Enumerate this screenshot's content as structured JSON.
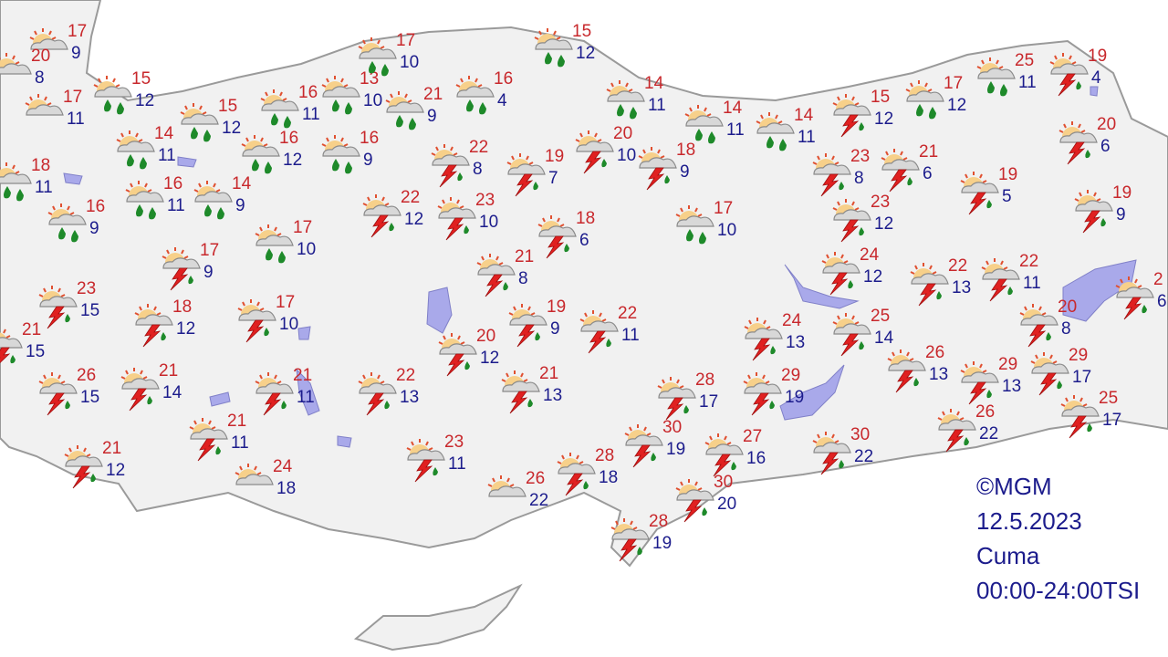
{
  "legend": {
    "copyright": "©MGM",
    "date": "12.5.2023",
    "day": "Cuma",
    "time_range": "00:00-24:00TSI"
  },
  "colors": {
    "high_temp": "#c8282c",
    "low_temp": "#1c1c8c",
    "land": "#f1f1f1",
    "water": "#a9a9ea",
    "border": "#9a9a9a"
  },
  "stations": [
    {
      "high": "17",
      "low": "9",
      "icon": "cloudy"
    },
    {
      "high": "20",
      "low": "8",
      "icon": "cloudy"
    },
    {
      "high": "17",
      "low": "11",
      "icon": "cloudy"
    },
    {
      "high": "15",
      "low": "12",
      "icon": "rain"
    },
    {
      "high": "15",
      "low": "12",
      "icon": "rain"
    },
    {
      "high": "14",
      "low": "11",
      "icon": "rain"
    },
    {
      "high": "18",
      "low": "11",
      "icon": "rain"
    },
    {
      "high": "16",
      "low": "11",
      "icon": "rain"
    },
    {
      "high": "14",
      "low": "9",
      "icon": "rain"
    },
    {
      "high": "16",
      "low": "9",
      "icon": "rain"
    },
    {
      "high": "16",
      "low": "12",
      "icon": "rain"
    },
    {
      "high": "16",
      "low": "11",
      "icon": "rain"
    },
    {
      "high": "13",
      "low": "10",
      "icon": "rain"
    },
    {
      "high": "17",
      "low": "10",
      "icon": "rain"
    },
    {
      "high": "21",
      "low": "9",
      "icon": "rain"
    },
    {
      "high": "16",
      "low": "9",
      "icon": "rain"
    },
    {
      "high": "16",
      "low": "4",
      "icon": "rain"
    },
    {
      "high": "15",
      "low": "12",
      "icon": "rain"
    },
    {
      "high": "14",
      "low": "11",
      "icon": "rain"
    },
    {
      "high": "14",
      "low": "11",
      "icon": "rain"
    },
    {
      "high": "14",
      "low": "11",
      "icon": "rain"
    },
    {
      "high": "15",
      "low": "12",
      "icon": "thunderstorm"
    },
    {
      "high": "17",
      "low": "12",
      "icon": "rain"
    },
    {
      "high": "25",
      "low": "11",
      "icon": "rain"
    },
    {
      "high": "19",
      "low": "4",
      "icon": "thunderstorm"
    },
    {
      "high": "20",
      "low": "6",
      "icon": "thunderstorm"
    },
    {
      "high": "19",
      "low": "5",
      "icon": "thunderstorm"
    },
    {
      "high": "19",
      "low": "9",
      "icon": "thunderstorm"
    },
    {
      "high": "21",
      "low": "6",
      "icon": "thunderstorm"
    },
    {
      "high": "23",
      "low": "8",
      "icon": "thunderstorm"
    },
    {
      "high": "23",
      "low": "12",
      "icon": "thunderstorm"
    },
    {
      "high": "22",
      "low": "8",
      "icon": "thunderstorm"
    },
    {
      "high": "19",
      "low": "7",
      "icon": "thunderstorm"
    },
    {
      "high": "20",
      "low": "10",
      "icon": "thunderstorm"
    },
    {
      "high": "18",
      "low": "9",
      "icon": "thunderstorm"
    },
    {
      "high": "22",
      "low": "12",
      "icon": "thunderstorm"
    },
    {
      "high": "23",
      "low": "10",
      "icon": "thunderstorm"
    },
    {
      "high": "18",
      "low": "6",
      "icon": "thunderstorm"
    },
    {
      "high": "17",
      "low": "10",
      "icon": "rain"
    },
    {
      "high": "17",
      "low": "10",
      "icon": "rain"
    },
    {
      "high": "17",
      "low": "9",
      "icon": "thunderstorm"
    },
    {
      "high": "21",
      "low": "8",
      "icon": "thunderstorm"
    },
    {
      "high": "23",
      "low": "15",
      "icon": "thunderstorm"
    },
    {
      "high": "21",
      "low": "15",
      "icon": "thunderstorm"
    },
    {
      "high": "18",
      "low": "12",
      "icon": "thunderstorm"
    },
    {
      "high": "17",
      "low": "10",
      "icon": "thunderstorm"
    },
    {
      "high": "19",
      "low": "9",
      "icon": "thunderstorm"
    },
    {
      "high": "22",
      "low": "11",
      "icon": "thunderstorm"
    },
    {
      "high": "20",
      "low": "12",
      "icon": "thunderstorm"
    },
    {
      "high": "24",
      "low": "12",
      "icon": "thunderstorm"
    },
    {
      "high": "22",
      "low": "13",
      "icon": "thunderstorm"
    },
    {
      "high": "22",
      "low": "11",
      "icon": "thunderstorm"
    },
    {
      "high": "20",
      "low": "8",
      "icon": "thunderstorm"
    },
    {
      "high": "2",
      "low": "6",
      "icon": "thunderstorm"
    },
    {
      "high": "24",
      "low": "13",
      "icon": "thunderstorm"
    },
    {
      "high": "25",
      "low": "14",
      "icon": "thunderstorm"
    },
    {
      "high": "26",
      "low": "13",
      "icon": "thunderstorm"
    },
    {
      "high": "29",
      "low": "13",
      "icon": "thunderstorm"
    },
    {
      "high": "29",
      "low": "17",
      "icon": "thunderstorm"
    },
    {
      "high": "25",
      "low": "17",
      "icon": "thunderstorm"
    },
    {
      "high": "26",
      "low": "22",
      "icon": "thunderstorm"
    },
    {
      "high": "26",
      "low": "15",
      "icon": "thunderstorm"
    },
    {
      "high": "21",
      "low": "14",
      "icon": "thunderstorm"
    },
    {
      "high": "21",
      "low": "11",
      "icon": "thunderstorm"
    },
    {
      "high": "22",
      "low": "13",
      "icon": "thunderstorm"
    },
    {
      "high": "21",
      "low": "13",
      "icon": "thunderstorm"
    },
    {
      "high": "28",
      "low": "17",
      "icon": "thunderstorm"
    },
    {
      "high": "29",
      "low": "19",
      "icon": "thunderstorm"
    },
    {
      "high": "21",
      "low": "11",
      "icon": "thunderstorm"
    },
    {
      "high": "21",
      "low": "12",
      "icon": "thunderstorm"
    },
    {
      "high": "24",
      "low": "18",
      "icon": "cloudy"
    },
    {
      "high": "23",
      "low": "11",
      "icon": "thunderstorm"
    },
    {
      "high": "26",
      "low": "22",
      "icon": "cloudy"
    },
    {
      "high": "28",
      "low": "18",
      "icon": "thunderstorm"
    },
    {
      "high": "30",
      "low": "19",
      "icon": "thunderstorm"
    },
    {
      "high": "27",
      "low": "16",
      "icon": "thunderstorm"
    },
    {
      "high": "30",
      "low": "22",
      "icon": "thunderstorm"
    },
    {
      "high": "30",
      "low": "20",
      "icon": "thunderstorm"
    },
    {
      "high": "28",
      "low": "19",
      "icon": "thunderstorm"
    }
  ]
}
